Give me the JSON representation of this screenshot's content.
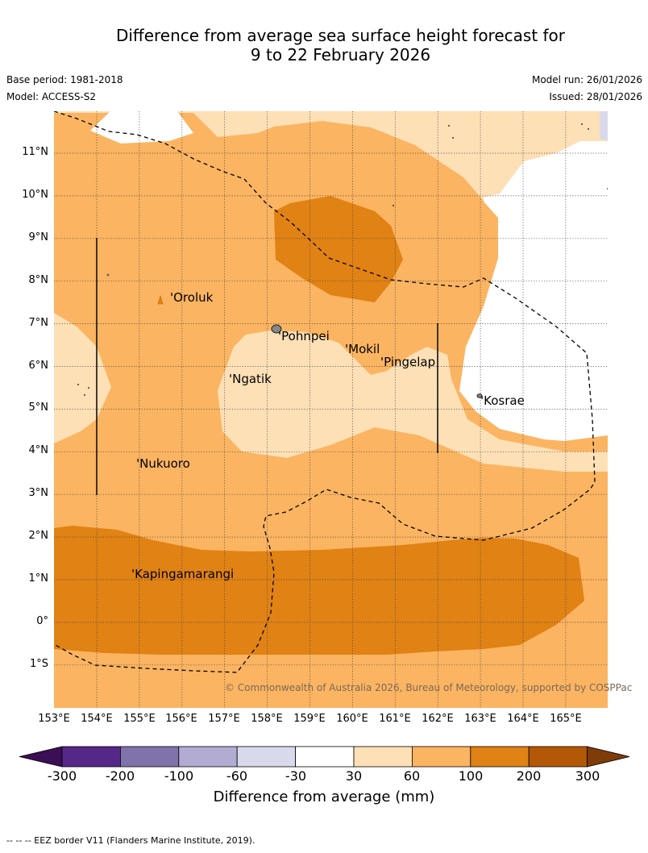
{
  "title_line1": "Difference from average sea surface height forecast for",
  "title_line2": "9 to 22 February 2026",
  "base_period": "Base period: 1981-2018",
  "model": "Model: ACCESS-S2",
  "model_run": "Model run: 26/01/2026",
  "issued": "Issued: 28/01/2026",
  "lat_labels": [
    "11°N",
    "10°N",
    "9°N",
    "8°N",
    "7°N",
    "6°N",
    "5°N",
    "4°N",
    "3°N",
    "2°N",
    "1°N",
    "0°",
    "1°S"
  ],
  "lon_labels": [
    "153°E",
    "154°E",
    "155°E",
    "156°E",
    "157°E",
    "158°E",
    "159°E",
    "160°E",
    "161°E",
    "162°E",
    "163°E",
    "164°E",
    "165°E"
  ],
  "places": {
    "oroluk": "Oroluk",
    "pohnpei": "Pohnpei",
    "mokil": "Mokil",
    "pingelap": "Pingelap",
    "ngatik": "Ngatik",
    "kosrae": "Kosrae",
    "nukuoro": "Nukuoro",
    "kapinga": "Kapingamarangi"
  },
  "copyright": "© Commonwealth of Australia 2026, Bureau of Meteorology, supported by COSPPac",
  "colorbar": {
    "ticks": [
      "-300",
      "-200",
      "-100",
      "-60",
      "-30",
      "30",
      "60",
      "100",
      "200",
      "300"
    ],
    "label": "Difference from average (mm)",
    "colors": [
      "#3b0f55",
      "#542788",
      "#8073ac",
      "#b2abd2",
      "#d8daeb",
      "#ffffff",
      "#fee0b6",
      "#fbb461",
      "#e08214",
      "#b35806",
      "#7f3b08"
    ]
  },
  "footnote": "-- -- -- EEZ border V11 (Flanders Marine Institute, 2019)."
}
